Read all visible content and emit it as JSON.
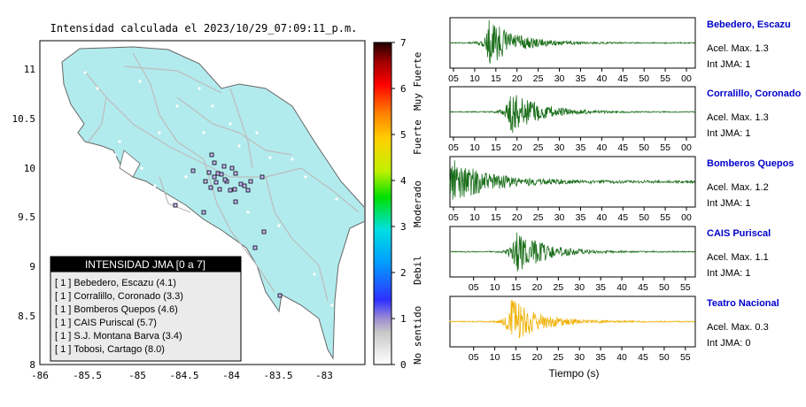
{
  "map_panel": {
    "title": "Intensidad calculada el 2023/10/29_07:09:11_p.m.",
    "x_ticks": [
      "-86",
      "-85.5",
      "-85",
      "-84.5",
      "-84",
      "-83.5",
      "-83"
    ],
    "y_ticks": [
      "11",
      "10.5",
      "10",
      "9.5",
      "9",
      "8.5",
      "8"
    ],
    "colorbar": {
      "ticks": [
        "0",
        "1",
        "2",
        "3",
        "4",
        "5",
        "6",
        "7"
      ],
      "labels": [
        "No sentido",
        "Debil",
        "Moderado",
        "Fuerte",
        "Muy Fuerte"
      ]
    },
    "legend": {
      "title": "INTENSIDAD JMA [0 a 7]",
      "items": [
        "[ 1 ]  Bebedero, Escazu (4.1)",
        "[ 1 ]  Corralillo, Coronado (3.3)",
        "[ 1 ]  Bomberos Quepos (4.6)",
        "[ 1 ]  CAIS Puriscal (5.7)",
        "[ 1 ]  S.J. Montana Barva (3.4)",
        "[ 1 ]  Tobosi, Cartago (8.0)"
      ]
    }
  },
  "chart_data": {
    "type": "line",
    "xlabel": "Tiempo (s)",
    "series": [
      {
        "name": "Bebedero, Escazu",
        "accel_label": "Acel. Max. 1.3",
        "jma_label": "Int JMA: 1",
        "color": "#1a6e1a",
        "ticks": [
          "05",
          "10",
          "15",
          "20",
          "25",
          "30",
          "35",
          "40",
          "45",
          "50",
          "55",
          "00"
        ],
        "burst_at": 0.16
      },
      {
        "name": "Corralillo, Coronado",
        "accel_label": "Acel. Max. 1.3",
        "jma_label": "Int JMA: 1",
        "color": "#1a6e1a",
        "ticks": [
          "05",
          "10",
          "15",
          "20",
          "25",
          "30",
          "35",
          "40",
          "45",
          "50",
          "55",
          "00"
        ],
        "burst_at": 0.25
      },
      {
        "name": "Bomberos Quepos",
        "accel_label": "Acel. Max. 1.2",
        "jma_label": "Int JMA: 1",
        "color": "#1a6e1a",
        "ticks": [
          "05",
          "10",
          "15",
          "20",
          "25",
          "30",
          "35",
          "40",
          "45",
          "50",
          "55",
          "00"
        ],
        "burst_at": 0.01
      },
      {
        "name": "CAIS Puriscal",
        "accel_label": "Acel. Max. 1.1",
        "jma_label": "Int JMA: 1",
        "color": "#1a6e1a",
        "ticks": [
          "05",
          "10",
          "15",
          "20",
          "25",
          "30",
          "35",
          "40",
          "45",
          "50",
          "55"
        ],
        "burst_at": 0.27
      },
      {
        "name": "Teatro Nacional",
        "accel_label": "Acel. Max. 0.3",
        "jma_label": "Int JMA: 0",
        "color": "#f0b000",
        "ticks": [
          "05",
          "10",
          "15",
          "20",
          "25",
          "30",
          "35",
          "40",
          "45",
          "50",
          "55"
        ],
        "burst_at": 0.25
      }
    ]
  },
  "colors": {
    "land": "#b2ebed",
    "land_edge": "#666666",
    "roads": "#bcbcbc",
    "legend_header": "#000000",
    "station_name": "#0000cc"
  }
}
